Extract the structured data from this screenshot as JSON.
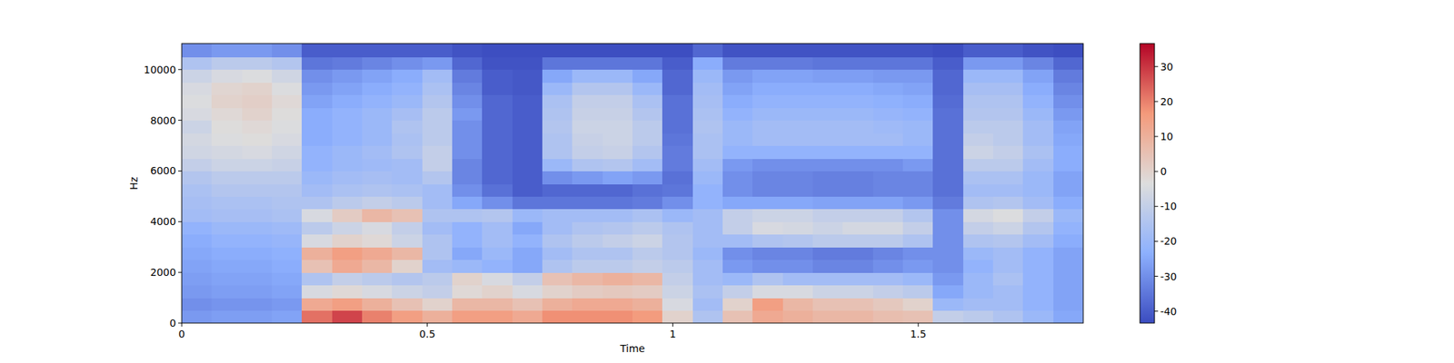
{
  "chart_data": {
    "type": "heatmap",
    "x_label": "Time",
    "y_label": "Hz",
    "xlim": [
      0,
      1.836
    ],
    "ylim": [
      0,
      11025
    ],
    "xticks": [
      0,
      0.5,
      1,
      1.5
    ],
    "yticks": [
      0,
      2000,
      4000,
      6000,
      8000,
      10000
    ],
    "x_edges": [
      0,
      0.0612,
      0.1224,
      0.1836,
      0.2448,
      0.306,
      0.3672,
      0.4284,
      0.4896,
      0.5508,
      0.612,
      0.6732,
      0.7344,
      0.7956,
      0.8568,
      0.918,
      0.9792,
      1.0404,
      1.1016,
      1.1628,
      1.224,
      1.2852,
      1.3464,
      1.4076,
      1.4688,
      1.53,
      1.5912,
      1.6524,
      1.7136,
      1.7748,
      1.836
    ],
    "y_edges": [
      0,
      500,
      1000,
      1500,
      2000,
      2500,
      3000,
      3500,
      4000,
      4500,
      5000,
      5500,
      6000,
      6500,
      7000,
      7500,
      8000,
      8500,
      9000,
      9500,
      10000,
      10500,
      11025
    ],
    "cells": [
      [
        -28,
        -30,
        -28,
        -27,
        -26,
        -25,
        -24,
        -22,
        -18,
        -17,
        -16,
        -14,
        -10,
        -7,
        -6,
        -8,
        -5,
        -4,
        -5,
        -8,
        -15,
        -30
      ],
      [
        -27,
        -29,
        -27,
        -26,
        -25,
        -24,
        -22,
        -20,
        -17,
        -16,
        -14,
        -12,
        -8,
        -6,
        -4,
        -3,
        -2,
        0,
        -1,
        -5,
        -12,
        -28
      ],
      [
        -27,
        -29,
        -27,
        -26,
        -25,
        -24,
        -22,
        -20,
        -17,
        -16,
        -14,
        -12,
        -8,
        -5,
        -3,
        -2,
        0,
        1,
        0,
        -4,
        -12,
        -28
      ],
      [
        -26,
        -28,
        -26,
        -25,
        -24,
        -23,
        -21,
        -19,
        -16,
        -15,
        -14,
        -12,
        -9,
        -7,
        -5,
        -4,
        -3,
        -2,
        -4,
        -7,
        -14,
        -30
      ],
      [
        22,
        12,
        -5,
        -15,
        5,
        10,
        -5,
        -12,
        -5,
        -15,
        -18,
        -20,
        -22,
        -22,
        -24,
        -24,
        -24,
        -26,
        -28,
        -30,
        -35,
        -40
      ],
      [
        28,
        15,
        -2,
        -10,
        12,
        15,
        0,
        -8,
        2,
        -12,
        -16,
        -18,
        -20,
        -20,
        -22,
        -22,
        -22,
        -24,
        -26,
        -28,
        -34,
        -40
      ],
      [
        20,
        10,
        -5,
        -12,
        8,
        12,
        -2,
        -5,
        8,
        -10,
        -15,
        -17,
        -19,
        -18,
        -20,
        -20,
        -20,
        -22,
        -24,
        -26,
        -32,
        -40
      ],
      [
        15,
        5,
        -8,
        -14,
        0,
        8,
        -8,
        -10,
        5,
        -12,
        -16,
        -18,
        -18,
        -15,
        -16,
        -15,
        -17,
        -20,
        -22,
        -24,
        -30,
        -40
      ],
      [
        10,
        0,
        -10,
        -12,
        -18,
        -15,
        -15,
        -18,
        -15,
        -18,
        -18,
        -14,
        -10,
        -10,
        -12,
        -12,
        -12,
        -14,
        -16,
        -18,
        -28,
        -40
      ],
      [
        15,
        8,
        -2,
        0,
        -20,
        -25,
        -22,
        -22,
        -15,
        -25,
        -30,
        -32,
        -32,
        -30,
        -30,
        -30,
        -28,
        -30,
        -32,
        -34,
        -38,
        -42
      ],
      [
        15,
        8,
        0,
        -5,
        -22,
        -20,
        -18,
        -18,
        -14,
        -30,
        -36,
        -38,
        -38,
        -38,
        -38,
        -38,
        -38,
        -38,
        -40,
        -40,
        -42,
        -43
      ],
      [
        12,
        5,
        -5,
        -10,
        -25,
        -25,
        -22,
        -25,
        -20,
        -35,
        -40,
        -40,
        -40,
        -40,
        -40,
        -40,
        -40,
        -40,
        -41,
        -41,
        -42,
        -43
      ],
      [
        18,
        10,
        0,
        5,
        -15,
        -18,
        -15,
        -18,
        -18,
        -35,
        -38,
        -30,
        -20,
        -15,
        -15,
        -14,
        -15,
        -16,
        -20,
        -25,
        -35,
        -43
      ],
      [
        18,
        12,
        2,
        8,
        -12,
        -15,
        -12,
        -15,
        -18,
        -35,
        -38,
        -28,
        -15,
        -10,
        -9,
        -8,
        -9,
        -10,
        -14,
        -20,
        -35,
        -43
      ],
      [
        18,
        12,
        3,
        10,
        -12,
        -15,
        -10,
        -14,
        -18,
        -35,
        -38,
        -26,
        -14,
        -9,
        -8,
        -8,
        -9,
        -10,
        -14,
        -20,
        -35,
        -43
      ],
      [
        16,
        10,
        2,
        8,
        -10,
        -12,
        -8,
        -12,
        -16,
        -34,
        -36,
        -28,
        -18,
        -14,
        -12,
        -12,
        -14,
        -16,
        -20,
        -25,
        -35,
        -43
      ],
      [
        0,
        -5,
        -8,
        -10,
        -12,
        -14,
        -14,
        -15,
        -20,
        -30,
        -35,
        -36,
        -34,
        -34,
        -35,
        -36,
        -36,
        -36,
        -38,
        -38,
        -40,
        -43
      ],
      [
        -15,
        -18,
        -16,
        -18,
        -18,
        -20,
        -18,
        -18,
        -18,
        -22,
        -22,
        -20,
        -18,
        -16,
        -16,
        -15,
        -16,
        -17,
        -18,
        -20,
        -24,
        -38
      ],
      [
        5,
        0,
        -10,
        -20,
        -28,
        -30,
        -18,
        -10,
        -10,
        -25,
        -30,
        -30,
        -28,
        -22,
        -20,
        -20,
        -22,
        -24,
        -26,
        -28,
        -34,
        -42
      ],
      [
        12,
        15,
        -5,
        -15,
        -30,
        -32,
        -15,
        -5,
        -8,
        -25,
        -32,
        -32,
        -30,
        -22,
        -18,
        -18,
        -20,
        -22,
        -24,
        -26,
        -34,
        -42
      ],
      [
        10,
        8,
        -5,
        -18,
        -30,
        -32,
        -14,
        -6,
        -8,
        -25,
        -32,
        -32,
        -30,
        -22,
        -18,
        -18,
        -20,
        -22,
        -24,
        -26,
        -34,
        -42
      ],
      [
        8,
        5,
        -8,
        -18,
        -32,
        -34,
        -12,
        -8,
        -10,
        -26,
        -33,
        -33,
        -30,
        -22,
        -18,
        -18,
        -20,
        -22,
        -24,
        -27,
        -35,
        -42
      ],
      [
        8,
        5,
        -8,
        -18,
        -32,
        -34,
        -12,
        -6,
        -10,
        -26,
        -33,
        -33,
        -30,
        -22,
        -18,
        -18,
        -20,
        -22,
        -24,
        -27,
        -35,
        -42
      ],
      [
        6,
        3,
        -10,
        -18,
        -30,
        -32,
        -12,
        -6,
        -10,
        -26,
        -32,
        -32,
        -30,
        -22,
        -18,
        -19,
        -21,
        -23,
        -25,
        -28,
        -35,
        -42
      ],
      [
        5,
        0,
        -12,
        -20,
        -28,
        -30,
        -15,
        -10,
        -14,
        -28,
        -32,
        -32,
        -28,
        -22,
        -20,
        -20,
        -22,
        -24,
        -26,
        -28,
        -35,
        -42
      ],
      [
        -10,
        -20,
        -25,
        -28,
        -30,
        -30,
        -30,
        -30,
        -30,
        -34,
        -36,
        -36,
        -36,
        -36,
        -36,
        -36,
        -36,
        -37,
        -38,
        -38,
        -40,
        -43
      ],
      [
        -12,
        -18,
        -20,
        -20,
        -22,
        -20,
        -15,
        -10,
        -6,
        -15,
        -18,
        -16,
        -12,
        -8,
        -10,
        -12,
        -14,
        -15,
        -17,
        -20,
        -28,
        -40
      ],
      [
        -15,
        -18,
        -18,
        -16,
        -18,
        -18,
        -14,
        -8,
        -4,
        -14,
        -18,
        -16,
        -12,
        -10,
        -12,
        -12,
        -14,
        -15,
        -17,
        -20,
        -28,
        -40
      ],
      [
        -20,
        -22,
        -22,
        -22,
        -22,
        -22,
        -18,
        -14,
        -10,
        -18,
        -20,
        -20,
        -18,
        -16,
        -18,
        -18,
        -20,
        -22,
        -24,
        -26,
        -32,
        -42
      ],
      [
        -25,
        -26,
        -26,
        -26,
        -26,
        -26,
        -24,
        -22,
        -20,
        -24,
        -26,
        -26,
        -24,
        -24,
        -25,
        -26,
        -28,
        -30,
        -32,
        -34,
        -38,
        -43
      ]
    ],
    "colorbar": {
      "range": [
        -43.4,
        36.6
      ],
      "ticks": [
        -40,
        -30,
        -20,
        -10,
        0,
        10,
        20,
        30
      ]
    }
  }
}
